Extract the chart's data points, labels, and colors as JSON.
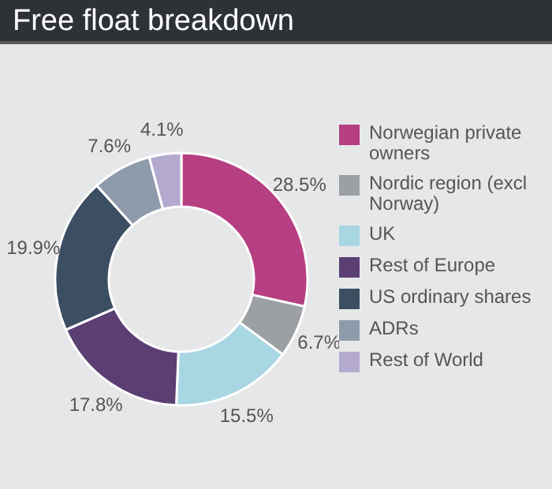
{
  "chart_data": {
    "type": "donut",
    "title": "Free float breakdown",
    "categories": [
      "Norwegian private owners",
      "Nordic region (excl Norway)",
      "UK",
      "Rest of Europe",
      "US ordinary shares",
      "ADRs",
      "Rest of World"
    ],
    "values": [
      28.5,
      6.7,
      15.5,
      17.8,
      19.9,
      7.6,
      4.1
    ],
    "value_labels": [
      "28.5%",
      "6.7%",
      "15.5%",
      "17.8%",
      "19.9%",
      "7.6%",
      "4.1%"
    ],
    "colors": [
      "#b63f82",
      "#9c9fa3",
      "#a9d6e3",
      "#5b3f73",
      "#3b4e62",
      "#8d9bab",
      "#b4aacf"
    ],
    "legend": "right"
  }
}
